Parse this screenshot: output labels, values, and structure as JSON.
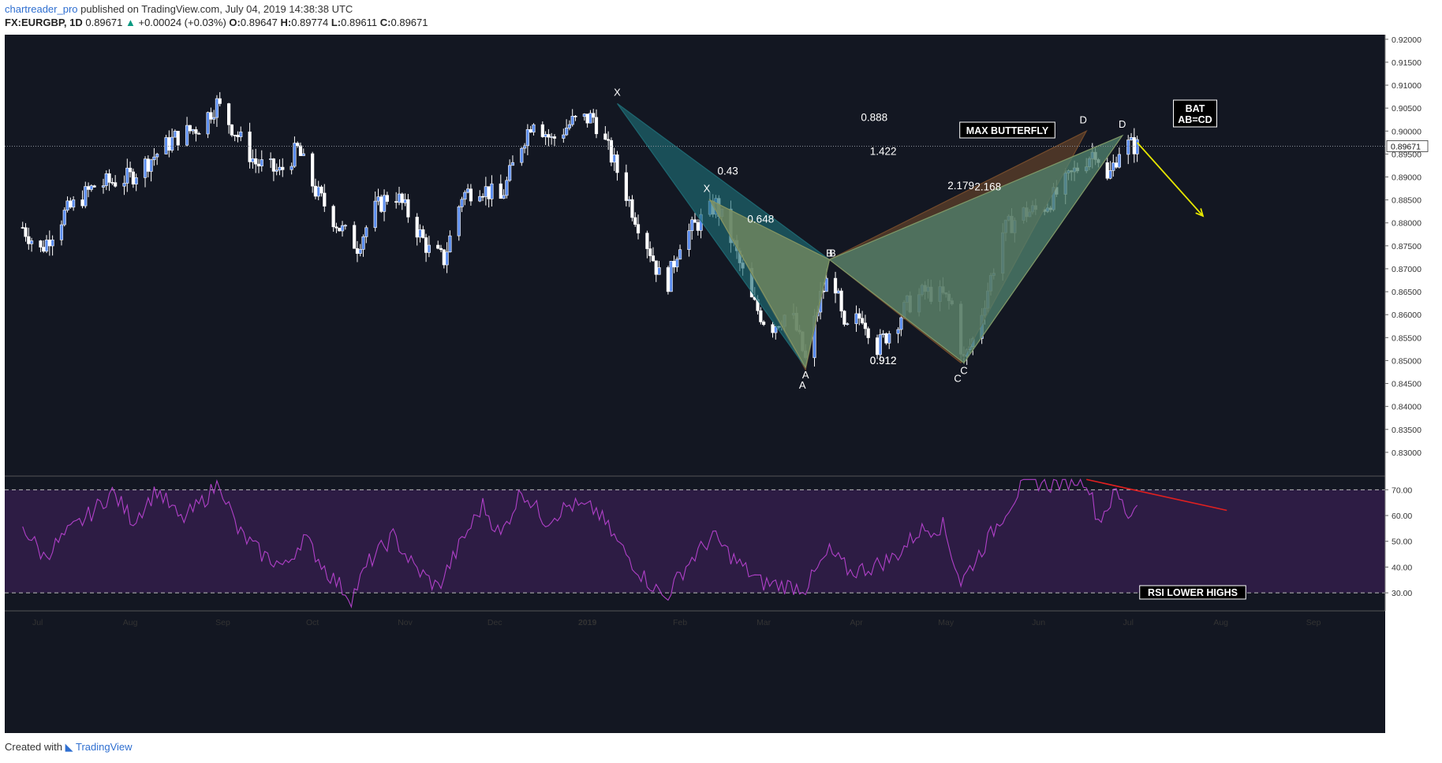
{
  "header": {
    "publisher": "chartreader_pro",
    "published_text": "published on TradingView.com, July 04, 2019 14:38:38 UTC",
    "symbol": "FX:EURGBP, 1D",
    "last": "0.89671",
    "change": "+0.00024 (+0.03%)",
    "ohlc_o_label": "O:",
    "ohlc_o": "0.89647",
    "ohlc_h_label": "H:",
    "ohlc_h": "0.89774",
    "ohlc_l_label": "L:",
    "ohlc_l": "0.89611",
    "ohlc_c_label": "C:",
    "ohlc_c": "0.89671"
  },
  "footer": {
    "created_with": "Created with",
    "brand": "TradingView"
  },
  "colors": {
    "background": "#131722",
    "bull_candle": "#5b8def",
    "bear_candle": "#ffffff",
    "rsi_line": "#b040c8",
    "rsi_band": "#2d1c44",
    "bat_fill": "#1f6d77",
    "butterfly_fill": "#7a4f2c",
    "inner_fill": "#8c9a63",
    "arrow": "#e6e600",
    "rsi_trend": "#e02020"
  },
  "chart_data": {
    "type": "candlestick",
    "x_ticks": [
      "Jul",
      "Aug",
      "Sep",
      "Oct",
      "Nov",
      "Dec",
      "2019",
      "Feb",
      "Mar",
      "Apr",
      "May",
      "Jun",
      "Jul",
      "Aug",
      "Sep"
    ],
    "y_ticks": [
      "0.92000",
      "0.91500",
      "0.91000",
      "0.90500",
      "0.90000",
      "0.89500",
      "0.89000",
      "0.88500",
      "0.88000",
      "0.87500",
      "0.87000",
      "0.86500",
      "0.86000",
      "0.85500",
      "0.85000",
      "0.84500",
      "0.84000",
      "0.83500",
      "0.83000"
    ],
    "ylim": [
      0.825,
      0.921
    ],
    "last_price_label": "0.89671",
    "last_price": 0.89671,
    "price_path": [
      {
        "date": "2018-06-26",
        "close": 0.879
      },
      {
        "date": "2018-07-02",
        "close": 0.874
      },
      {
        "date": "2018-07-10",
        "close": 0.882
      },
      {
        "date": "2018-07-20",
        "close": 0.888
      },
      {
        "date": "2018-08-01",
        "close": 0.89
      },
      {
        "date": "2018-08-08",
        "close": 0.894
      },
      {
        "date": "2018-08-16",
        "close": 0.8985
      },
      {
        "date": "2018-08-24",
        "close": 0.901
      },
      {
        "date": "2018-08-30",
        "close": 0.906
      },
      {
        "date": "2018-09-05",
        "close": 0.9
      },
      {
        "date": "2018-09-12",
        "close": 0.893
      },
      {
        "date": "2018-09-20",
        "close": 0.891
      },
      {
        "date": "2018-09-26",
        "close": 0.896
      },
      {
        "date": "2018-10-02",
        "close": 0.887
      },
      {
        "date": "2018-10-10",
        "close": 0.879
      },
      {
        "date": "2018-10-16",
        "close": 0.875
      },
      {
        "date": "2018-10-22",
        "close": 0.883
      },
      {
        "date": "2018-10-28",
        "close": 0.887
      },
      {
        "date": "2018-11-02",
        "close": 0.882
      },
      {
        "date": "2018-11-09",
        "close": 0.874
      },
      {
        "date": "2018-11-14",
        "close": 0.872
      },
      {
        "date": "2018-11-20",
        "close": 0.886
      },
      {
        "date": "2018-11-26",
        "close": 0.888
      },
      {
        "date": "2018-12-03",
        "close": 0.885
      },
      {
        "date": "2018-12-09",
        "close": 0.896
      },
      {
        "date": "2018-12-14",
        "close": 0.903
      },
      {
        "date": "2018-12-20",
        "close": 0.898
      },
      {
        "date": "2018-12-27",
        "close": 0.902
      },
      {
        "date": "2019-01-03",
        "close": 0.903
      },
      {
        "date": "2019-01-10",
        "close": 0.893
      },
      {
        "date": "2019-01-16",
        "close": 0.883
      },
      {
        "date": "2019-01-22",
        "close": 0.874
      },
      {
        "date": "2019-01-27",
        "close": 0.865
      },
      {
        "date": "2019-02-01",
        "close": 0.876
      },
      {
        "date": "2019-02-07",
        "close": 0.88
      },
      {
        "date": "2019-02-13",
        "close": 0.884
      },
      {
        "date": "2019-02-19",
        "close": 0.875
      },
      {
        "date": "2019-02-25",
        "close": 0.863
      },
      {
        "date": "2019-03-03",
        "close": 0.857
      },
      {
        "date": "2019-03-10",
        "close": 0.861
      },
      {
        "date": "2019-03-15",
        "close": 0.85
      },
      {
        "date": "2019-03-20",
        "close": 0.864
      },
      {
        "date": "2019-03-24",
        "close": 0.87
      },
      {
        "date": "2019-03-28",
        "close": 0.856
      },
      {
        "date": "2019-04-03",
        "close": 0.86
      },
      {
        "date": "2019-04-08",
        "close": 0.853
      },
      {
        "date": "2019-04-14",
        "close": 0.858
      },
      {
        "date": "2019-04-18",
        "close": 0.862
      },
      {
        "date": "2019-04-24",
        "close": 0.865
      },
      {
        "date": "2019-04-30",
        "close": 0.864
      },
      {
        "date": "2019-05-03",
        "close": 0.862
      },
      {
        "date": "2019-05-07",
        "close": 0.85
      },
      {
        "date": "2019-05-11",
        "close": 0.856
      },
      {
        "date": "2019-05-16",
        "close": 0.868
      },
      {
        "date": "2019-05-20",
        "close": 0.878
      },
      {
        "date": "2019-05-26",
        "close": 0.882
      },
      {
        "date": "2019-06-02",
        "close": 0.883
      },
      {
        "date": "2019-06-08",
        "close": 0.887
      },
      {
        "date": "2019-06-14",
        "close": 0.892
      },
      {
        "date": "2019-06-20",
        "close": 0.896
      },
      {
        "date": "2019-06-24",
        "close": 0.889
      },
      {
        "date": "2019-06-28",
        "close": 0.896
      },
      {
        "date": "2019-07-01",
        "close": 0.897
      },
      {
        "date": "2019-07-04",
        "close": 0.8967
      }
    ],
    "patterns": [
      {
        "name": "BAT",
        "points": [
          {
            "label": "X",
            "date": "2019-01-11",
            "price": 0.906
          },
          {
            "label": "A",
            "date": "2019-03-15",
            "price": 0.8485
          },
          {
            "label": "B",
            "date": "2019-03-23",
            "price": 0.872
          },
          {
            "label": "C",
            "date": "2019-05-07",
            "price": 0.8495
          },
          {
            "label": "D",
            "date": "2019-06-29",
            "price": 0.899
          }
        ]
      },
      {
        "name": "MAX BUTTERFLY",
        "points": [
          {
            "label": "X",
            "date": "2019-02-11",
            "price": 0.885
          },
          {
            "label": "A",
            "date": "2019-03-15",
            "price": 0.848
          },
          {
            "label": "B",
            "date": "2019-03-23",
            "price": 0.872
          },
          {
            "label": "C",
            "date": "2019-05-06",
            "price": 0.8495
          },
          {
            "label": "D",
            "date": "2019-06-17",
            "price": 0.9
          }
        ]
      }
    ],
    "ratio_labels": [
      {
        "text": "0.888",
        "date": "2019-04-07",
        "price": 0.9022
      },
      {
        "text": "1.422",
        "date": "2019-04-10",
        "price": 0.8948
      },
      {
        "text": "2.179",
        "date": "2019-05-06",
        "price": 0.8873
      },
      {
        "text": "2.168",
        "date": "2019-05-15",
        "price": 0.8871
      },
      {
        "text": "0.43",
        "date": "2019-02-17",
        "price": 0.8905
      },
      {
        "text": "0.648",
        "date": "2019-02-28",
        "price": 0.88
      },
      {
        "text": "0.912",
        "date": "2019-04-10",
        "price": 0.8492
      },
      {
        "text": "0.912",
        "date": "2019-04-10",
        "price": 0.8492
      }
    ],
    "annotations": {
      "max_butterfly": "MAX BUTTERFLY",
      "bat_line1": "BAT",
      "bat_line2": "AB=CD",
      "rsi_lower_highs": "RSI LOWER HIGHS"
    },
    "projection_arrow": {
      "from_date": "2019-07-04",
      "from_price": 0.8975,
      "to_date": "2019-07-26",
      "to_price": 0.8815
    },
    "rsi": {
      "y_ticks": [
        "70.00",
        "60.00",
        "50.00",
        "40.00",
        "30.00"
      ],
      "ylim": [
        23,
        75
      ],
      "overbought": 70,
      "oversold": 30,
      "values": [
        {
          "date": "2018-06-26",
          "v": 56
        },
        {
          "date": "2018-07-03",
          "v": 44
        },
        {
          "date": "2018-07-10",
          "v": 52
        },
        {
          "date": "2018-07-18",
          "v": 60
        },
        {
          "date": "2018-07-26",
          "v": 69
        },
        {
          "date": "2018-08-02",
          "v": 58
        },
        {
          "date": "2018-08-10",
          "v": 70
        },
        {
          "date": "2018-08-18",
          "v": 58
        },
        {
          "date": "2018-08-24",
          "v": 64
        },
        {
          "date": "2018-08-31",
          "v": 73
        },
        {
          "date": "2018-09-06",
          "v": 54
        },
        {
          "date": "2018-09-14",
          "v": 45
        },
        {
          "date": "2018-09-22",
          "v": 40
        },
        {
          "date": "2018-09-28",
          "v": 52
        },
        {
          "date": "2018-10-06",
          "v": 38
        },
        {
          "date": "2018-10-14",
          "v": 28
        },
        {
          "date": "2018-10-20",
          "v": 42
        },
        {
          "date": "2018-10-28",
          "v": 52
        },
        {
          "date": "2018-11-04",
          "v": 40
        },
        {
          "date": "2018-11-12",
          "v": 32
        },
        {
          "date": "2018-11-20",
          "v": 50
        },
        {
          "date": "2018-11-27",
          "v": 64
        },
        {
          "date": "2018-12-03",
          "v": 52
        },
        {
          "date": "2018-12-10",
          "v": 70
        },
        {
          "date": "2018-12-18",
          "v": 58
        },
        {
          "date": "2018-12-26",
          "v": 64
        },
        {
          "date": "2019-01-04",
          "v": 62
        },
        {
          "date": "2019-01-12",
          "v": 48
        },
        {
          "date": "2019-01-20",
          "v": 36
        },
        {
          "date": "2019-01-27",
          "v": 28
        },
        {
          "date": "2019-02-04",
          "v": 42
        },
        {
          "date": "2019-02-12",
          "v": 52
        },
        {
          "date": "2019-02-20",
          "v": 42
        },
        {
          "date": "2019-02-28",
          "v": 34
        },
        {
          "date": "2019-03-07",
          "v": 33
        },
        {
          "date": "2019-03-15",
          "v": 32
        },
        {
          "date": "2019-03-23",
          "v": 46
        },
        {
          "date": "2019-03-30",
          "v": 38
        },
        {
          "date": "2019-04-06",
          "v": 40
        },
        {
          "date": "2019-04-14",
          "v": 44
        },
        {
          "date": "2019-04-22",
          "v": 54
        },
        {
          "date": "2019-04-30",
          "v": 56
        },
        {
          "date": "2019-05-06",
          "v": 34
        },
        {
          "date": "2019-05-12",
          "v": 45
        },
        {
          "date": "2019-05-20",
          "v": 60
        },
        {
          "date": "2019-05-28",
          "v": 74
        },
        {
          "date": "2019-06-05",
          "v": 72
        },
        {
          "date": "2019-06-13",
          "v": 74
        },
        {
          "date": "2019-06-17",
          "v": 74
        },
        {
          "date": "2019-06-21",
          "v": 58
        },
        {
          "date": "2019-06-27",
          "v": 69
        },
        {
          "date": "2019-07-01",
          "v": 60
        },
        {
          "date": "2019-07-04",
          "v": 64
        }
      ],
      "trendline": {
        "from_date": "2019-06-17",
        "from_v": 74,
        "to_date": "2019-08-03",
        "to_v": 62
      }
    }
  }
}
